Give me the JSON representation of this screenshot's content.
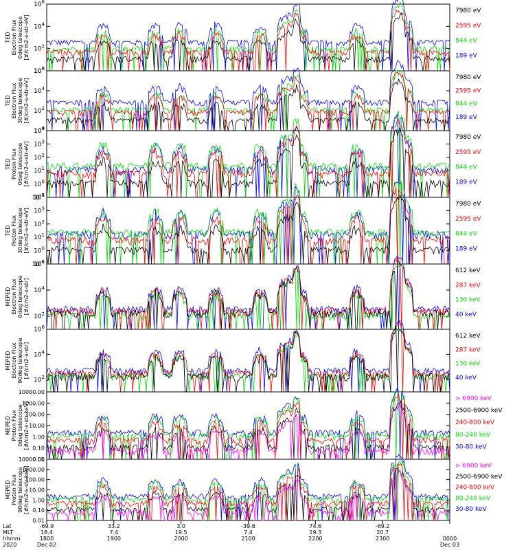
{
  "chart_data": {
    "type": "line",
    "time_range_hhmm": [
      "1800",
      "0000"
    ],
    "panels": [
      {
        "ylabel": [
          "TED",
          "Electron Flux",
          "0deg telescope",
          "[#/cm2-s-str-eV]"
        ],
        "yscale": "log",
        "ylim": [
          1,
          1000000
        ],
        "tick_labels": [
          "10^0",
          "10^2",
          "10^4",
          "10^6"
        ],
        "channels": [
          {
            "name": "7980 eV",
            "color": "#000000",
            "level": 10
          },
          {
            "name": "2595 eV",
            "color": "#ff0000",
            "level": 40
          },
          {
            "name": "844 eV",
            "color": "#00dd00",
            "level": 80
          },
          {
            "name": "189 eV",
            "color": "#0000ff",
            "level": 300
          }
        ]
      },
      {
        "ylabel": [
          "TED",
          "Electron Flux",
          "30deg telescope",
          "[#/cm2-s-str-eV]"
        ],
        "yscale": "log",
        "ylim": [
          1,
          1000000
        ],
        "tick_labels": [
          "10^0",
          "10^2",
          "10^4",
          "10^6"
        ],
        "channels": [
          {
            "name": "7980 eV",
            "color": "#000000",
            "level": 10
          },
          {
            "name": "2595 eV",
            "color": "#ff0000",
            "level": 60
          },
          {
            "name": "844 eV",
            "color": "#00dd00",
            "level": 100
          },
          {
            "name": "189 eV",
            "color": "#0000ff",
            "level": 600
          }
        ]
      },
      {
        "ylabel": [
          "TED",
          "Proton Flux",
          "0deg telescope",
          "[#/cm2-s-str-eV]"
        ],
        "yscale": "log",
        "ylim": [
          0.1,
          10000
        ],
        "tick_labels": [
          "10^-1",
          "10^0",
          "10^1",
          "10^2",
          "10^3",
          "10^4"
        ],
        "channels": [
          {
            "name": "7980 eV",
            "color": "#000000",
            "level": 1
          },
          {
            "name": "2595 eV",
            "color": "#ff0000",
            "level": 5
          },
          {
            "name": "844 eV",
            "color": "#00dd00",
            "level": 20
          },
          {
            "name": "189 eV",
            "color": "#0000ff",
            "level": 10
          }
        ]
      },
      {
        "ylabel": [
          "TED",
          "Proton Flux",
          "30deg telescope",
          "[#/cm2-s-str-eV]"
        ],
        "yscale": "log",
        "ylim": [
          0.1,
          10000
        ],
        "tick_labels": [
          "10^-1",
          "10^0",
          "10^1",
          "10^2",
          "10^3",
          "10^4"
        ],
        "channels": [
          {
            "name": "7980 eV",
            "color": "#000000",
            "level": 1
          },
          {
            "name": "2595 eV",
            "color": "#ff0000",
            "level": 5
          },
          {
            "name": "844 eV",
            "color": "#00dd00",
            "level": 20
          },
          {
            "name": "189 eV",
            "color": "#0000ff",
            "level": 15
          }
        ]
      },
      {
        "ylabel": [
          "MEPED",
          "Electron Flux",
          "0deg telescope",
          "[#/cm2-s-str]"
        ],
        "yscale": "log",
        "ylim": [
          10,
          1000000
        ],
        "tick_labels": [
          "10^2",
          "10^4",
          "10^6"
        ],
        "channels": [
          {
            "name": "612 keV",
            "color": "#000000",
            "level": 150
          },
          {
            "name": "287 keV",
            "color": "#ff0000",
            "level": 200
          },
          {
            "name": "130 keV",
            "color": "#00dd00",
            "level": 100
          },
          {
            "name": "40 keV",
            "color": "#0000ff",
            "level": 300
          }
        ]
      },
      {
        "ylabel": [
          "MEPED",
          "Electron Flux",
          "90deg telescope",
          "[#/cm2-s-str]"
        ],
        "yscale": "log",
        "ylim": [
          10,
          1000000
        ],
        "tick_labels": [
          "10^2",
          "10^4",
          "10^6"
        ],
        "channels": [
          {
            "name": "612 keV",
            "color": "#000000",
            "level": 150
          },
          {
            "name": "287 keV",
            "color": "#ff0000",
            "level": 250
          },
          {
            "name": "130 keV",
            "color": "#00dd00",
            "level": 150
          },
          {
            "name": "40 keV",
            "color": "#0000ff",
            "level": 400
          }
        ]
      },
      {
        "ylabel": [
          "MEPED",
          "Proton Flux",
          "0deg telescope",
          "[#/cm2-s-str-keV]"
        ],
        "yscale": "log",
        "ylim": [
          0.01,
          10000
        ],
        "tick_labels": [
          "0.01",
          "0.10",
          "1.00",
          "10.00",
          "100.00",
          "1000.00",
          "10000.00"
        ],
        "channels": [
          {
            "name": "> 6900 keV",
            "color": "#ff00ff",
            "level": 0.05
          },
          {
            "name": "2500-6900 keV",
            "color": "#000000",
            "level": 0.1
          },
          {
            "name": "240-800 keV",
            "color": "#ff0000",
            "level": 0.4
          },
          {
            "name": "80-240 keV",
            "color": "#00dd00",
            "level": 1
          },
          {
            "name": "30-80 keV",
            "color": "#0000ff",
            "level": 2
          }
        ]
      },
      {
        "ylabel": [
          "MEPED",
          "Proton Flux",
          "90deg telescope",
          "[#/cm2-s-str-keV]"
        ],
        "yscale": "log",
        "ylim": [
          0.01,
          10000
        ],
        "tick_labels": [
          "0.01",
          "0.10",
          "1.00",
          "10.00",
          "100.00",
          "1000.00",
          "10000.00"
        ],
        "channels": [
          {
            "name": "> 6900 keV",
            "color": "#ff00ff",
            "level": 0.05
          },
          {
            "name": "2500-6900 keV",
            "color": "#000000",
            "level": 0.1
          },
          {
            "name": "240-800 keV",
            "color": "#ff0000",
            "level": 0.4
          },
          {
            "name": "80-240 keV",
            "color": "#00dd00",
            "level": 1
          },
          {
            "name": "30-80 keV",
            "color": "#0000ff",
            "level": 2
          }
        ]
      }
    ],
    "x_axis": {
      "row_labels": [
        "Lat",
        "MLT",
        "hhmm",
        "2020"
      ],
      "ticks": [
        {
          "lat": "-69.9",
          "mlt": "18.4",
          "hhmm": "1800",
          "date": "Dec 02"
        },
        {
          "lat": "33.2",
          "mlt": "7.4",
          "hhmm": "1900",
          "date": ""
        },
        {
          "lat": "3.0",
          "mlt": "19.5",
          "hhmm": "2000",
          "date": ""
        },
        {
          "lat": "-39.6",
          "mlt": "7.4",
          "hhmm": "2100",
          "date": ""
        },
        {
          "lat": "74.6",
          "mlt": "19.3",
          "hhmm": "2200",
          "date": ""
        },
        {
          "lat": "-69.2",
          "mlt": "20.7",
          "hhmm": "2300",
          "date": ""
        },
        {
          "lat": "",
          "mlt": "",
          "hhmm": "0000",
          "date": "Dec 03"
        }
      ]
    }
  }
}
